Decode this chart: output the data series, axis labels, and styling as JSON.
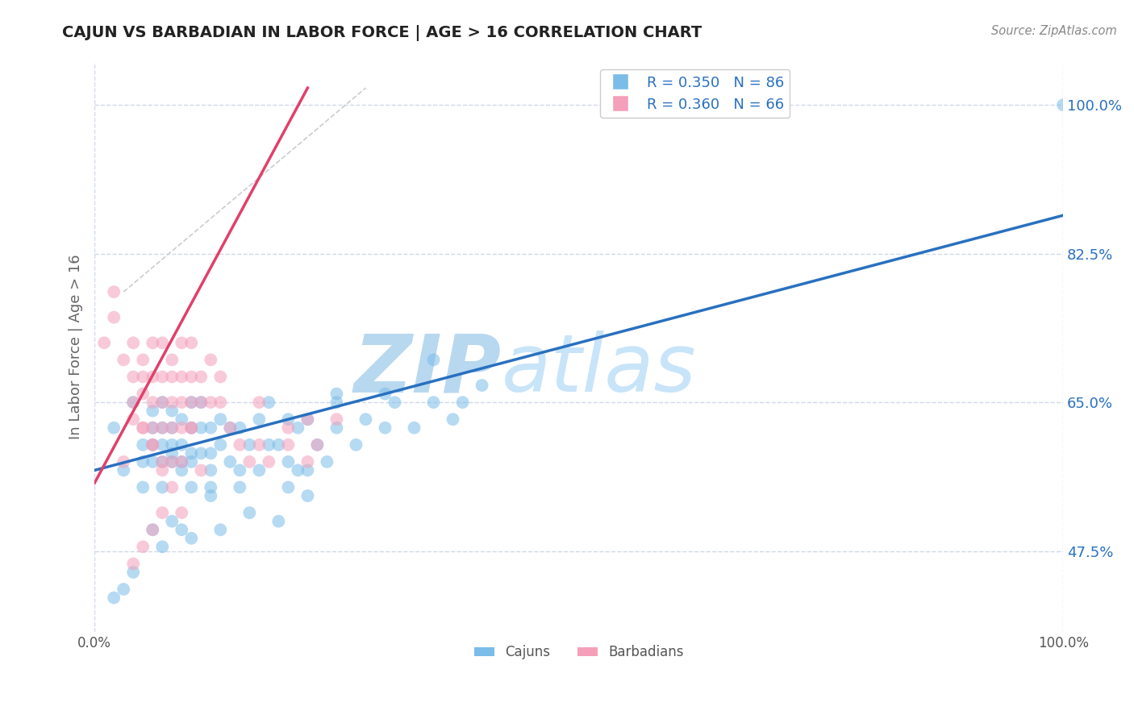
{
  "title": "CAJUN VS BARBADIAN IN LABOR FORCE | AGE > 16 CORRELATION CHART",
  "source_text": "Source: ZipAtlas.com",
  "xlabel": "",
  "ylabel": "In Labor Force | Age > 16",
  "x_tick_labels": [
    "0.0%",
    "100.0%"
  ],
  "y_tick_labels_right": [
    "47.5%",
    "65.0%",
    "82.5%",
    "100.0%"
  ],
  "x_lim": [
    0.0,
    1.0
  ],
  "y_lim": [
    0.38,
    1.05
  ],
  "cajun_R": 0.35,
  "cajun_N": 86,
  "barbadian_R": 0.36,
  "barbadian_N": 66,
  "cajun_color": "#7bbce8",
  "barbadian_color": "#f4a0bb",
  "cajun_line_color": "#2970c0",
  "barbadian_line_color": "#e0406a",
  "diag_line_color": "#cccccc",
  "watermark_color": "#cce4f5",
  "watermark_text": "ZIPatlas",
  "background_color": "#ffffff",
  "grid_color": "#d0d8e8",
  "title_color": "#222222",
  "legend_label_cajun": "Cajuns",
  "legend_label_barbadian": "Barbadians",
  "cajun_line_x0": 0.0,
  "cajun_line_y0": 0.57,
  "cajun_line_x1": 1.0,
  "cajun_line_y1": 0.87,
  "barbadian_line_x0": 0.0,
  "barbadian_line_y0": 0.555,
  "barbadian_line_x1": 0.22,
  "barbadian_line_y1": 1.02,
  "diag_line_x0": 0.03,
  "diag_line_y0": 0.78,
  "diag_line_x1": 0.28,
  "diag_line_y1": 1.02,
  "cajun_scatter_x": [
    0.02,
    0.03,
    0.04,
    0.05,
    0.05,
    0.05,
    0.06,
    0.06,
    0.06,
    0.06,
    0.07,
    0.07,
    0.07,
    0.07,
    0.07,
    0.08,
    0.08,
    0.08,
    0.08,
    0.08,
    0.09,
    0.09,
    0.09,
    0.09,
    0.1,
    0.1,
    0.1,
    0.1,
    0.11,
    0.11,
    0.11,
    0.12,
    0.12,
    0.12,
    0.12,
    0.13,
    0.13,
    0.14,
    0.14,
    0.15,
    0.15,
    0.16,
    0.17,
    0.17,
    0.18,
    0.18,
    0.19,
    0.2,
    0.2,
    0.21,
    0.21,
    0.22,
    0.22,
    0.23,
    0.24,
    0.25,
    0.25,
    0.27,
    0.28,
    0.3,
    0.31,
    0.33,
    0.35,
    0.37,
    0.38,
    0.4,
    0.16,
    0.13,
    0.19,
    0.1,
    0.09,
    0.08,
    0.07,
    0.06,
    0.04,
    0.03,
    0.02,
    0.22,
    0.1,
    0.25,
    0.3,
    0.35,
    0.2,
    0.15,
    0.12,
    1.0
  ],
  "cajun_scatter_y": [
    0.62,
    0.57,
    0.65,
    0.58,
    0.55,
    0.6,
    0.62,
    0.58,
    0.6,
    0.64,
    0.58,
    0.6,
    0.62,
    0.55,
    0.65,
    0.59,
    0.62,
    0.64,
    0.58,
    0.6,
    0.58,
    0.6,
    0.63,
    0.57,
    0.59,
    0.62,
    0.65,
    0.58,
    0.59,
    0.62,
    0.65,
    0.57,
    0.59,
    0.62,
    0.55,
    0.6,
    0.63,
    0.58,
    0.62,
    0.57,
    0.62,
    0.6,
    0.57,
    0.63,
    0.6,
    0.65,
    0.6,
    0.58,
    0.63,
    0.57,
    0.62,
    0.57,
    0.63,
    0.6,
    0.58,
    0.65,
    0.62,
    0.6,
    0.63,
    0.62,
    0.65,
    0.62,
    0.65,
    0.63,
    0.65,
    0.67,
    0.52,
    0.5,
    0.51,
    0.49,
    0.5,
    0.51,
    0.48,
    0.5,
    0.45,
    0.43,
    0.42,
    0.54,
    0.55,
    0.66,
    0.66,
    0.7,
    0.55,
    0.55,
    0.54,
    1.0
  ],
  "barbadian_scatter_x": [
    0.01,
    0.02,
    0.02,
    0.03,
    0.04,
    0.04,
    0.04,
    0.05,
    0.05,
    0.05,
    0.05,
    0.06,
    0.06,
    0.06,
    0.06,
    0.06,
    0.07,
    0.07,
    0.07,
    0.07,
    0.07,
    0.08,
    0.08,
    0.08,
    0.08,
    0.09,
    0.09,
    0.09,
    0.09,
    0.1,
    0.1,
    0.1,
    0.1,
    0.11,
    0.11,
    0.12,
    0.12,
    0.13,
    0.13,
    0.14,
    0.15,
    0.16,
    0.17,
    0.17,
    0.18,
    0.2,
    0.2,
    0.22,
    0.22,
    0.23,
    0.25,
    0.03,
    0.04,
    0.05,
    0.06,
    0.07,
    0.08,
    0.09,
    0.1,
    0.11,
    0.08,
    0.09,
    0.07,
    0.06,
    0.05,
    0.04
  ],
  "barbadian_scatter_y": [
    0.72,
    0.75,
    0.78,
    0.7,
    0.68,
    0.65,
    0.72,
    0.7,
    0.66,
    0.62,
    0.68,
    0.65,
    0.62,
    0.68,
    0.72,
    0.6,
    0.65,
    0.68,
    0.62,
    0.58,
    0.72,
    0.68,
    0.65,
    0.62,
    0.7,
    0.65,
    0.62,
    0.68,
    0.72,
    0.65,
    0.68,
    0.62,
    0.72,
    0.65,
    0.68,
    0.65,
    0.7,
    0.65,
    0.68,
    0.62,
    0.6,
    0.58,
    0.6,
    0.65,
    0.58,
    0.62,
    0.6,
    0.63,
    0.58,
    0.6,
    0.63,
    0.58,
    0.63,
    0.62,
    0.6,
    0.57,
    0.58,
    0.58,
    0.62,
    0.57,
    0.55,
    0.52,
    0.52,
    0.5,
    0.48,
    0.46
  ]
}
